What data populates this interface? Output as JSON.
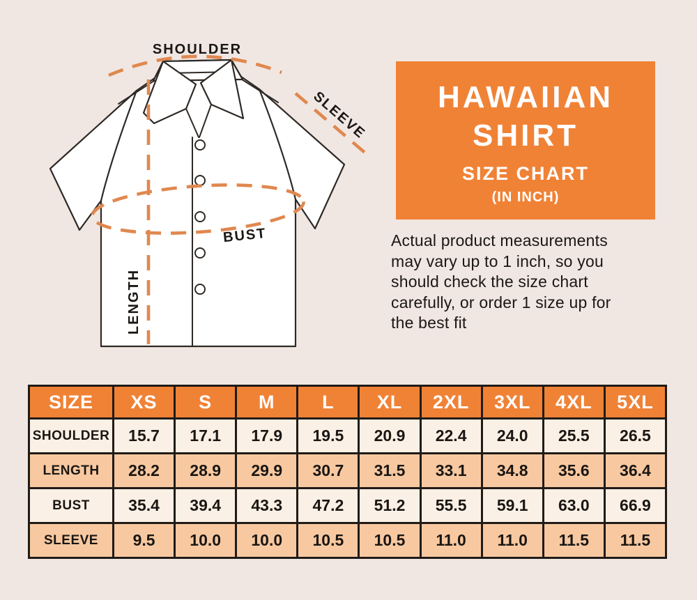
{
  "theme": {
    "bg": "#F0E7E3",
    "accent": "#F08236",
    "dash": "#E0884F",
    "peach": "#F8C9A1",
    "cream": "#FBF0E5",
    "border": "#201B17",
    "ink": "#1A1613",
    "white": "#FFFFFF"
  },
  "title_box": {
    "line1": "HAWAIIAN",
    "line2": "SHIRT",
    "line3": "SIZE CHART",
    "line4": "(IN INCH)"
  },
  "note": {
    "text": "Actual product measurements\nmay vary up to 1 inch, so you\nshould check the size chart\ncarefully, or order 1 size up for\nthe best fit"
  },
  "diagram": {
    "labels": {
      "shoulder": "SHOULDER",
      "sleeve": "SLEEVE",
      "bust": "BUST",
      "length": "LENGTH"
    }
  },
  "chart_data": {
    "type": "table",
    "title": "HAWAIIAN SHIRT SIZE CHART (IN INCH)",
    "unit": "inch",
    "columns": [
      "SIZE",
      "XS",
      "S",
      "M",
      "L",
      "XL",
      "2XL",
      "3XL",
      "4XL",
      "5XL"
    ],
    "rows": [
      {
        "label": "SHOULDER",
        "values": [
          "15.7",
          "17.1",
          "17.9",
          "19.5",
          "20.9",
          "22.4",
          "24.0",
          "25.5",
          "26.5"
        ]
      },
      {
        "label": "LENGTH",
        "values": [
          "28.2",
          "28.9",
          "29.9",
          "30.7",
          "31.5",
          "33.1",
          "34.8",
          "35.6",
          "36.4"
        ]
      },
      {
        "label": "BUST",
        "values": [
          "35.4",
          "39.4",
          "43.3",
          "47.2",
          "51.2",
          "55.5",
          "59.1",
          "63.0",
          "66.9"
        ]
      },
      {
        "label": "SLEEVE",
        "values": [
          "9.5",
          "10.0",
          "10.0",
          "10.5",
          "10.5",
          "11.0",
          "11.0",
          "11.5",
          "11.5"
        ]
      }
    ]
  }
}
